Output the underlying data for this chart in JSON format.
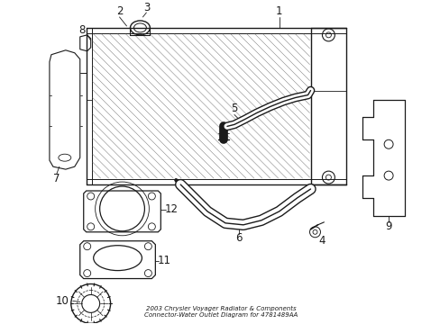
{
  "title": "2003 Chrysler Voyager Radiator & Components\nConnector-Water Outlet Diagram for 4781489AA",
  "background_color": "#ffffff",
  "line_color": "#1a1a1a",
  "label_color": "#1a1a1a"
}
